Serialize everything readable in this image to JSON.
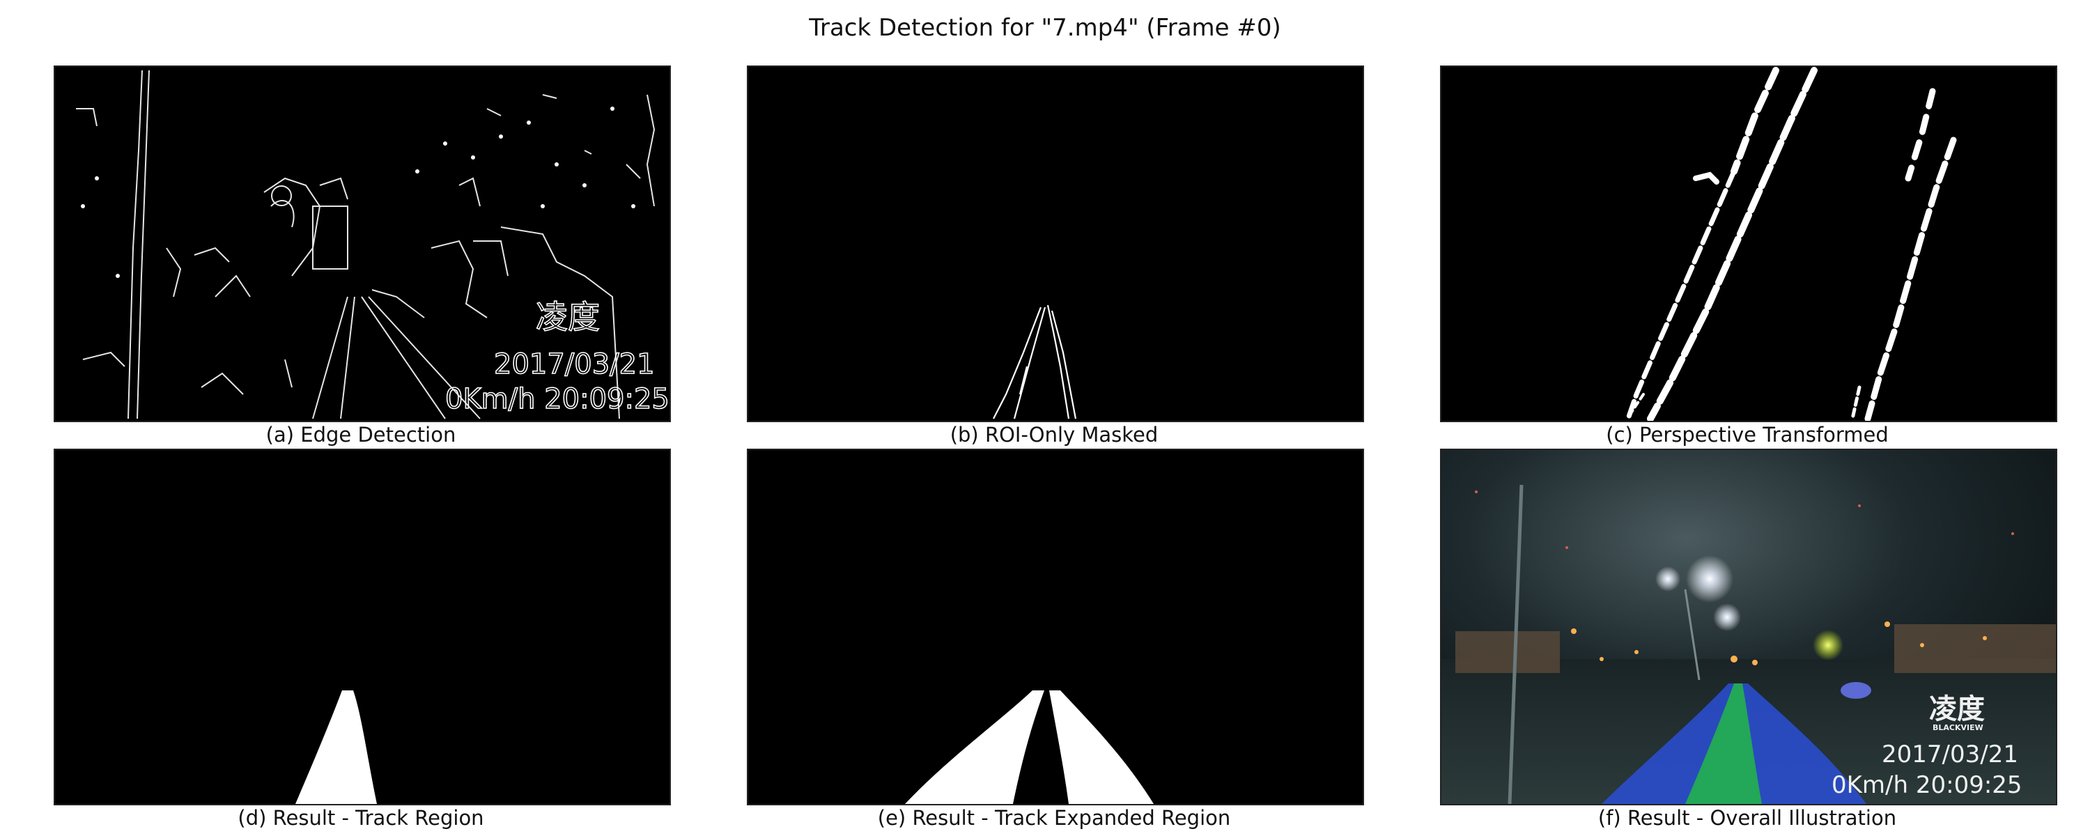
{
  "figure": {
    "title": "Track Detection for \"7.mp4\" (Frame #0)"
  },
  "panels": [
    {
      "caption": "(a) Edge Detection"
    },
    {
      "caption": "(b) ROI-Only Masked"
    },
    {
      "caption": "(c) Perspective Transformed"
    },
    {
      "caption": "(d) Result - Track Region"
    },
    {
      "caption": "(e) Result - Track Expanded Region"
    },
    {
      "caption": "(f) Result - Overall Illustration"
    }
  ],
  "overlay": {
    "brand": "凌度",
    "brand_sub": "BLACKVIEW",
    "date": "2017/03/21",
    "speed_time": "0Km/h 20:09:25"
  },
  "colors": {
    "track_fill": "#22b14c",
    "expanded_fill": "#2a4fd6",
    "mask_white": "#ffffff",
    "background": "#000000"
  }
}
